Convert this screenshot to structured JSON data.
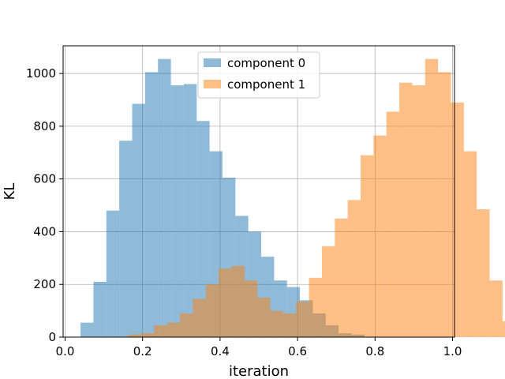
{
  "chart_data": {
    "type": "bar",
    "subtype": "histogram-overlay",
    "title": "",
    "xlabel": "iteration",
    "ylabel": "KL",
    "xlim": [
      -0.005,
      1.005
    ],
    "ylim": [
      0,
      1105
    ],
    "xticks": [
      0.0,
      0.2,
      0.4,
      0.6,
      0.8,
      1.0
    ],
    "xtick_labels": [
      "0.0",
      "0.2",
      "0.4",
      "0.6",
      "0.8",
      "1.0"
    ],
    "yticks": [
      0,
      200,
      400,
      600,
      800,
      1000
    ],
    "ytick_labels": [
      "0",
      "200",
      "400",
      "600",
      "800",
      "1000"
    ],
    "grid": true,
    "legend_position": "top-center",
    "series": [
      {
        "name": "component 0",
        "color": "#1f77b4",
        "alpha": 0.5,
        "bin_start": 0.04,
        "bin_width": 0.0333,
        "values": [
          55,
          210,
          480,
          745,
          885,
          1005,
          1055,
          955,
          960,
          820,
          705,
          605,
          460,
          400,
          305,
          215,
          190,
          140,
          90,
          45,
          15,
          10
        ]
      },
      {
        "name": "component 1",
        "color": "#ff7f0e",
        "alpha": 0.5,
        "bin_start": 0.1633,
        "bin_width": 0.0333,
        "values": [
          10,
          15,
          45,
          55,
          90,
          145,
          200,
          260,
          270,
          215,
          150,
          100,
          90,
          135,
          225,
          345,
          450,
          520,
          690,
          765,
          855,
          965,
          955,
          1055,
          1005,
          890,
          705,
          485,
          215,
          60
        ]
      }
    ]
  }
}
